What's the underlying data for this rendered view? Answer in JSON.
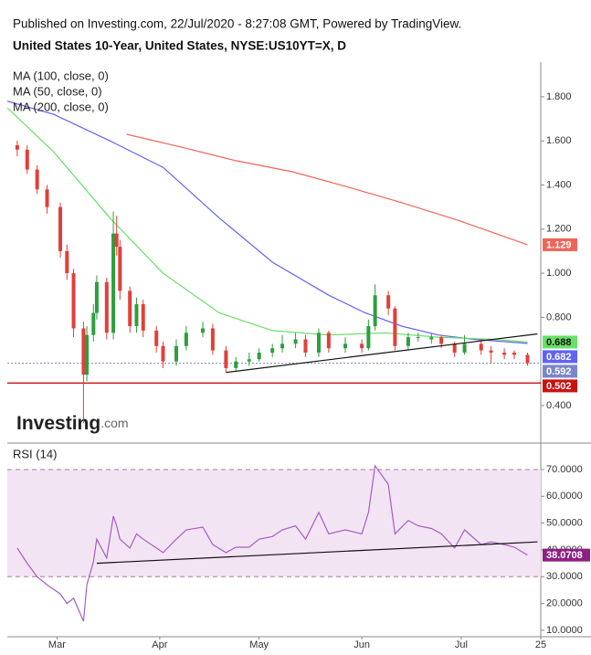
{
  "header": {
    "published": "Published on Investing.com, 22/Jul/2020 - 8:27:08 GMT, Powered by TradingView.",
    "logo": "Investing",
    "logo_suffix": ".com"
  },
  "chart_data": [
    {
      "type": "candlestick",
      "title": "United States 10-Year, United States, NYSE:US10YT=X, D",
      "x": [
        "2020-02-18",
        "2020-02-21",
        "2020-02-24",
        "2020-02-27",
        "2020-03-02",
        "2020-03-04",
        "2020-03-06",
        "2020-03-09",
        "2020-03-10",
        "2020-03-12",
        "2020-03-13",
        "2020-03-16",
        "2020-03-18",
        "2020-03-19",
        "2020-03-20",
        "2020-03-23",
        "2020-03-25",
        "2020-03-27",
        "2020-03-31",
        "2020-04-02",
        "2020-04-06",
        "2020-04-09",
        "2020-04-14",
        "2020-04-17",
        "2020-04-21",
        "2020-04-24",
        "2020-04-28",
        "2020-05-01",
        "2020-05-05",
        "2020-05-08",
        "2020-05-12",
        "2020-05-15",
        "2020-05-19",
        "2020-05-22",
        "2020-05-27",
        "2020-06-01",
        "2020-06-03",
        "2020-06-05",
        "2020-06-09",
        "2020-06-11",
        "2020-06-15",
        "2020-06-18",
        "2020-06-22",
        "2020-06-25",
        "2020-06-29",
        "2020-07-02",
        "2020-07-07",
        "2020-07-10",
        "2020-07-14",
        "2020-07-17",
        "2020-07-21"
      ],
      "open": [
        1.58,
        1.56,
        1.47,
        1.38,
        1.3,
        1.1,
        1.0,
        0.75,
        0.54,
        0.72,
        0.82,
        0.96,
        0.73,
        1.18,
        1.12,
        0.92,
        0.76,
        0.86,
        0.74,
        0.67,
        0.6,
        0.67,
        0.73,
        0.75,
        0.65,
        0.57,
        0.6,
        0.61,
        0.64,
        0.66,
        0.68,
        0.7,
        0.64,
        0.73,
        0.66,
        0.68,
        0.66,
        0.76,
        0.9,
        0.84,
        0.67,
        0.71,
        0.7,
        0.71,
        0.68,
        0.64,
        0.68,
        0.65,
        0.64,
        0.64,
        0.63
      ],
      "high": [
        1.6,
        1.58,
        1.49,
        1.4,
        1.32,
        1.13,
        1.02,
        0.78,
        0.76,
        0.86,
        0.99,
        0.98,
        1.28,
        1.26,
        1.15,
        0.94,
        0.89,
        0.88,
        0.76,
        0.69,
        0.7,
        0.76,
        0.78,
        0.77,
        0.67,
        0.62,
        0.64,
        0.66,
        0.68,
        0.72,
        0.73,
        0.72,
        0.75,
        0.74,
        0.71,
        0.7,
        0.79,
        0.95,
        0.92,
        0.85,
        0.73,
        0.73,
        0.73,
        0.72,
        0.69,
        0.72,
        0.7,
        0.67,
        0.66,
        0.65,
        0.64
      ],
      "low": [
        1.53,
        1.45,
        1.36,
        1.27,
        1.07,
        0.97,
        0.71,
        0.32,
        0.51,
        0.69,
        0.79,
        0.7,
        0.7,
        1.08,
        0.88,
        0.73,
        0.73,
        0.71,
        0.64,
        0.57,
        0.58,
        0.65,
        0.71,
        0.63,
        0.55,
        0.56,
        0.58,
        0.6,
        0.62,
        0.64,
        0.66,
        0.62,
        0.62,
        0.64,
        0.64,
        0.64,
        0.65,
        0.74,
        0.81,
        0.65,
        0.65,
        0.69,
        0.68,
        0.66,
        0.62,
        0.63,
        0.63,
        0.59,
        0.61,
        0.61,
        0.58
      ],
      "close": [
        1.56,
        1.47,
        1.38,
        1.3,
        1.1,
        1.0,
        0.75,
        0.54,
        0.72,
        0.82,
        0.96,
        0.73,
        1.18,
        1.12,
        0.92,
        0.76,
        0.86,
        0.74,
        0.67,
        0.6,
        0.67,
        0.73,
        0.75,
        0.65,
        0.57,
        0.6,
        0.61,
        0.64,
        0.66,
        0.68,
        0.7,
        0.64,
        0.73,
        0.66,
        0.68,
        0.66,
        0.76,
        0.9,
        0.84,
        0.67,
        0.71,
        0.71,
        0.71,
        0.68,
        0.64,
        0.68,
        0.65,
        0.64,
        0.63,
        0.63,
        0.592
      ],
      "up_color": "#2e9e3e",
      "down_color": "#e0403a",
      "price_line_color": "#7a86c9",
      "series": [
        {
          "name": "MA (100, close, 0)",
          "color": "#6262f5",
          "x": [
            "2020-02-15",
            "2020-02-29",
            "2020-03-17",
            "2020-04-02",
            "2020-04-19",
            "2020-05-05",
            "2020-05-22",
            "2020-06-02",
            "2020-06-13",
            "2020-06-24",
            "2020-07-05",
            "2020-07-21"
          ],
          "values": [
            1.78,
            1.72,
            1.6,
            1.48,
            1.25,
            1.05,
            0.9,
            0.82,
            0.76,
            0.72,
            0.7,
            0.682
          ]
        },
        {
          "name": "MA (50, close, 0)",
          "color": "#66e066",
          "x": [
            "2020-02-15",
            "2020-02-29",
            "2020-03-17",
            "2020-04-02",
            "2020-04-19",
            "2020-05-05",
            "2020-05-22",
            "2020-06-08",
            "2020-06-24",
            "2020-07-11",
            "2020-07-21"
          ],
          "values": [
            1.75,
            1.55,
            1.25,
            1.0,
            0.82,
            0.74,
            0.72,
            0.73,
            0.71,
            0.7,
            0.688
          ]
        },
        {
          "name": "MA (200, close, 0)",
          "color": "#ef6459",
          "x": [
            "2020-03-22",
            "2020-04-08",
            "2020-04-24",
            "2020-05-11",
            "2020-05-28",
            "2020-06-13",
            "2020-06-30",
            "2020-07-21"
          ],
          "values": [
            1.63,
            1.57,
            1.51,
            1.46,
            1.39,
            1.32,
            1.24,
            1.129
          ]
        }
      ],
      "trendlines": [
        {
          "x": [
            "2020-04-21",
            "2020-07-24"
          ],
          "values": [
            0.55,
            0.725
          ],
          "color": "#111111"
        }
      ],
      "hlines": [
        {
          "value": 0.502,
          "color": "#cc1111"
        }
      ],
      "xlim": [
        "2020-02-15",
        "2020-07-25"
      ],
      "ylim": [
        0.23,
        1.957
      ],
      "yticks": [
        {
          "value": 1.8,
          "label": "1.800"
        },
        {
          "value": 1.6,
          "label": "1.600"
        },
        {
          "value": 1.4,
          "label": "1.400"
        },
        {
          "value": 1.2,
          "label": "1.200"
        },
        {
          "value": 1.0,
          "label": "1.000"
        },
        {
          "value": 0.8,
          "label": "0.800"
        },
        {
          "value": 0.4,
          "label": "0.400"
        }
      ]
    },
    {
      "type": "line",
      "title": "RSI (14)",
      "series": [
        {
          "color": "#a45cc4",
          "x": [
            "2020-02-18",
            "2020-02-21",
            "2020-02-24",
            "2020-02-27",
            "2020-03-02",
            "2020-03-04",
            "2020-03-06",
            "2020-03-09",
            "2020-03-10",
            "2020-03-12",
            "2020-03-13",
            "2020-03-16",
            "2020-03-18",
            "2020-03-19",
            "2020-03-20",
            "2020-03-23",
            "2020-03-25",
            "2020-03-27",
            "2020-03-31",
            "2020-04-02",
            "2020-04-06",
            "2020-04-09",
            "2020-04-14",
            "2020-04-17",
            "2020-04-21",
            "2020-04-24",
            "2020-04-28",
            "2020-05-01",
            "2020-05-05",
            "2020-05-08",
            "2020-05-12",
            "2020-05-15",
            "2020-05-19",
            "2020-05-22",
            "2020-05-27",
            "2020-06-01",
            "2020-06-03",
            "2020-06-05",
            "2020-06-09",
            "2020-06-11",
            "2020-06-15",
            "2020-06-18",
            "2020-06-22",
            "2020-06-25",
            "2020-06-29",
            "2020-07-02",
            "2020-07-07",
            "2020-07-10",
            "2020-07-14",
            "2020-07-17",
            "2020-07-21"
          ],
          "values": [
            40.7,
            35,
            30,
            27,
            23.6,
            20,
            22,
            13.4,
            27,
            35.6,
            44,
            37,
            52.6,
            49,
            44,
            40.7,
            46,
            44,
            40.7,
            39,
            44,
            47.5,
            48.5,
            42,
            39,
            41,
            41,
            44,
            45,
            47.5,
            49,
            44,
            54,
            46,
            47.5,
            46,
            54,
            71.4,
            64.5,
            46,
            51,
            49,
            48,
            46,
            40.7,
            47.5,
            42,
            43,
            42,
            41,
            38.0708
          ]
        }
      ],
      "levels": [
        70,
        30
      ],
      "band_color": "#f3e4f4",
      "level_color": "#a9789f",
      "trendlines": [
        {
          "x": [
            "2020-03-13",
            "2020-07-24"
          ],
          "values": [
            35,
            43
          ],
          "color": "#111111"
        }
      ],
      "xlim": [
        "2020-02-15",
        "2020-07-25"
      ],
      "ylim": [
        7.6,
        79.2
      ],
      "yticks": [
        {
          "value": 70,
          "label": "70.0000"
        },
        {
          "value": 60,
          "label": "60.0000"
        },
        {
          "value": 50,
          "label": "50.0000"
        },
        {
          "value": 40,
          "label": "40.0000"
        },
        {
          "value": 30,
          "label": "30.0000"
        },
        {
          "value": 20,
          "label": "20.0000"
        },
        {
          "value": 10,
          "label": "10.0000"
        }
      ],
      "xticks": [
        {
          "value": "2020-03-01",
          "label": "Mar"
        },
        {
          "value": "2020-04-01",
          "label": "Apr"
        },
        {
          "value": "2020-05-01",
          "label": "May"
        },
        {
          "value": "2020-06-01",
          "label": "Jun"
        },
        {
          "value": "2020-07-01",
          "label": "Jul"
        },
        {
          "value": "2020-07-25",
          "label": "25"
        }
      ]
    }
  ]
}
